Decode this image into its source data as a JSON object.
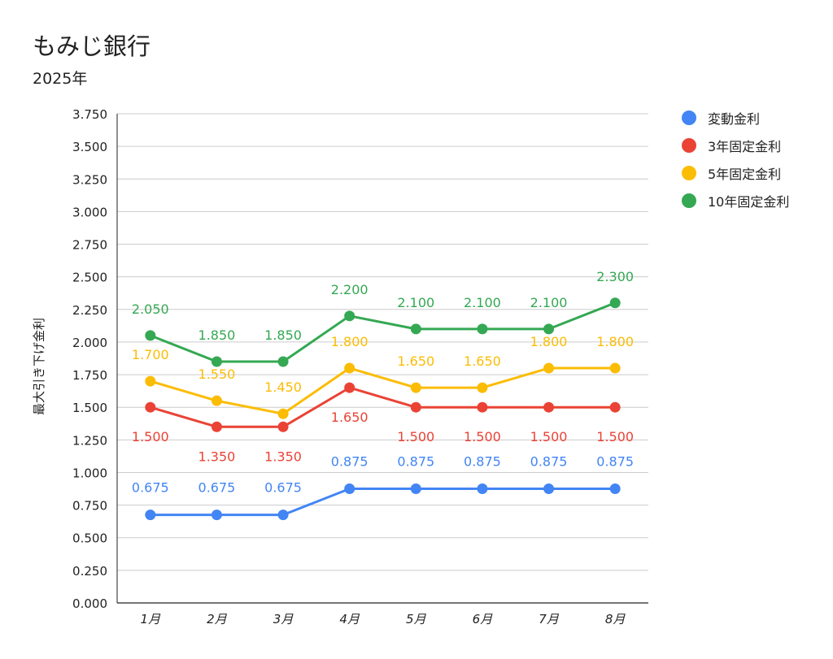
{
  "title": "もみじ銀行",
  "subtitle": "2025年",
  "chart_data": {
    "type": "line",
    "title": "もみじ銀行",
    "subtitle": "2025年",
    "xlabel": "",
    "ylabel": "最大引き下げ金利",
    "categories": [
      "1月",
      "2月",
      "3月",
      "4月",
      "5月",
      "6月",
      "7月",
      "8月"
    ],
    "ylim": [
      0,
      3.75
    ],
    "yticks": [
      "0.000",
      "0.250",
      "0.500",
      "0.750",
      "1.000",
      "1.250",
      "1.500",
      "1.750",
      "2.000",
      "2.250",
      "2.500",
      "2.750",
      "3.000",
      "3.250",
      "3.500",
      "3.750"
    ],
    "grid": true,
    "legend_position": "right",
    "series": [
      {
        "name": "変動金利",
        "color": "#4285f4",
        "values": [
          0.675,
          0.675,
          0.675,
          0.875,
          0.875,
          0.875,
          0.875,
          0.875
        ],
        "labels": [
          "0.675",
          "0.675",
          "0.675",
          "0.875",
          "0.875",
          "0.875",
          "0.875",
          "0.875"
        ]
      },
      {
        "name": "3年固定金利",
        "color": "#ea4335",
        "values": [
          1.5,
          1.35,
          1.35,
          1.65,
          1.5,
          1.5,
          1.5,
          1.5
        ],
        "labels": [
          "1.500",
          "1.350",
          "1.350",
          "1.650",
          "1.500",
          "1.500",
          "1.500",
          "1.500"
        ]
      },
      {
        "name": "5年固定金利",
        "color": "#fbbc04",
        "values": [
          1.7,
          1.55,
          1.45,
          1.8,
          1.65,
          1.65,
          1.8,
          1.8
        ],
        "labels": [
          "1.700",
          "1.550",
          "1.450",
          "1.800",
          "1.650",
          "1.650",
          "1.800",
          "1.800"
        ]
      },
      {
        "name": "10年固定金利",
        "color": "#34a853",
        "values": [
          2.05,
          1.85,
          1.85,
          2.2,
          2.1,
          2.1,
          2.1,
          2.3
        ],
        "labels": [
          "2.050",
          "1.850",
          "1.850",
          "2.200",
          "2.100",
          "2.100",
          "2.100",
          "2.300"
        ]
      }
    ]
  }
}
